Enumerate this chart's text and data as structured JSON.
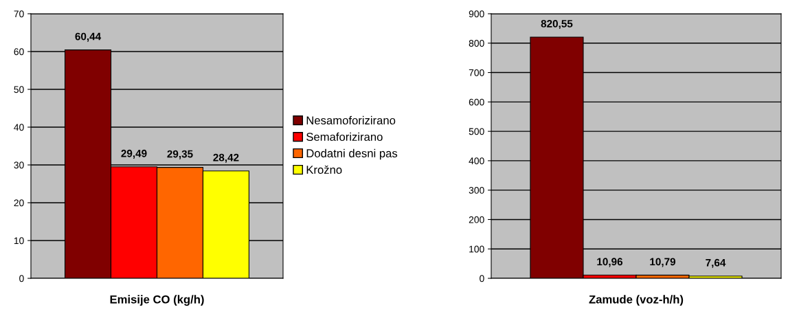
{
  "chart_data": [
    {
      "type": "bar",
      "xlabel": "Emisije CO (kg/h)",
      "categories": [
        null
      ],
      "ylim": [
        0,
        70
      ],
      "yticks": [
        0,
        10,
        20,
        30,
        40,
        50,
        60,
        70
      ],
      "grid": "y",
      "legend": "right",
      "data_labels": true,
      "series": [
        {
          "name": "Nesamoforizirano",
          "color": "#800000",
          "values": [
            60.44
          ],
          "value_labels": [
            "60,44"
          ]
        },
        {
          "name": "Semaforizirano",
          "color": "#ff0000",
          "values": [
            29.49
          ],
          "value_labels": [
            "29,49"
          ]
        },
        {
          "name": "Dodatni desni pas",
          "color": "#ff6600",
          "values": [
            29.35
          ],
          "value_labels": [
            "29,35"
          ]
        },
        {
          "name": "Krožno",
          "color": "#ffff00",
          "values": [
            28.42
          ],
          "value_labels": [
            "28,42"
          ]
        }
      ]
    },
    {
      "type": "bar",
      "xlabel": "Zamude (voz-h/h)",
      "categories": [
        null
      ],
      "ylim": [
        0,
        900
      ],
      "yticks": [
        0,
        100,
        200,
        300,
        400,
        500,
        600,
        700,
        800,
        900
      ],
      "grid": "y",
      "data_labels": true,
      "series": [
        {
          "color": "#800000",
          "values": [
            820.55
          ],
          "value_labels": [
            "820,55"
          ]
        },
        {
          "color": "#ff0000",
          "values": [
            10.96
          ],
          "value_labels": [
            "10,96"
          ]
        },
        {
          "color": "#ff6600",
          "values": [
            10.79
          ],
          "value_labels": [
            "10,79"
          ]
        },
        {
          "color": "#ffff00",
          "values": [
            7.64
          ],
          "value_labels": [
            "7,64"
          ]
        }
      ]
    }
  ]
}
